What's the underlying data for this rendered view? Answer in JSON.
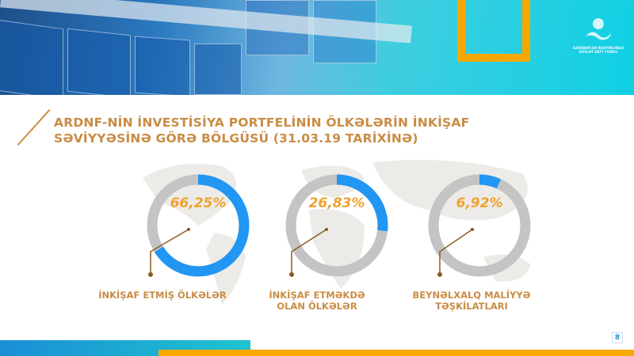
{
  "header": {
    "logo_text": "AZƏRBAYCAN RESPUBLİKASI DÖVLƏT NEFT FONDU"
  },
  "title": {
    "line1": "ARDNF-NİN İNVESTİSİYA PORTFELİNİN ÖLKƏLƏRİN İNKİŞAF",
    "line2": "SƏVİYYƏSİNƏ GÖRƏ BÖLGÜSÜ (31.03.19 TARİXİNƏ)"
  },
  "chart_data": {
    "type": "pie",
    "subtype": "donut",
    "items": [
      {
        "label": "İNKİŞAF ETMİŞ ÖLKƏLƏR",
        "value": 66.25,
        "value_label": "66,25%"
      },
      {
        "label": "İNKİŞAF ETMƏKDƏ OLAN ÖLKƏLƏR",
        "label_line1": "İNKİŞAF ETMƏKDƏ",
        "label_line2": "OLAN ÖLKƏLƏR",
        "value": 26.83,
        "value_label": "26,83%"
      },
      {
        "label": "BEYNƏLXALQ MALİYYƏ TƏŞKİLATLARI",
        "label_line1": "BEYNƏLXALQ MALİYYƏ",
        "label_line2": "TƏŞKİLATLARI",
        "value": 6.92,
        "value_label": "6,92%"
      }
    ]
  },
  "colors": {
    "accent": "#2196f3",
    "track": "#c4c4c4",
    "gold": "#c98c45",
    "orange": "#f6a800"
  },
  "page_number": "8"
}
